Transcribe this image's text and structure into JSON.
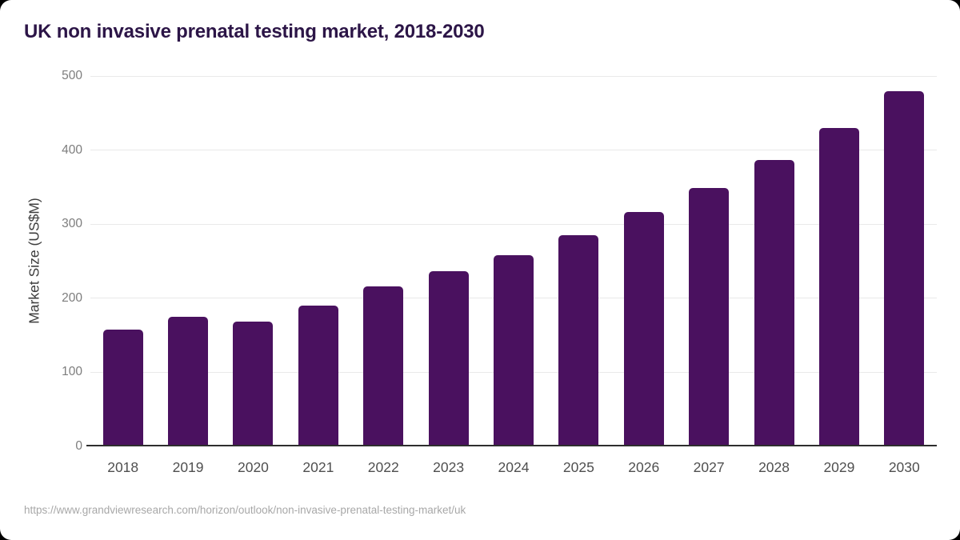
{
  "header": {
    "title": "UK non invasive prenatal testing market, 2018-2030",
    "title_color": "#2c1547"
  },
  "chart_data": {
    "type": "bar",
    "title": "UK non invasive prenatal testing market, 2018-2030",
    "categories": [
      "2018",
      "2019",
      "2020",
      "2021",
      "2022",
      "2023",
      "2024",
      "2025",
      "2026",
      "2027",
      "2028",
      "2029",
      "2030"
    ],
    "values": [
      158,
      175,
      169,
      190,
      216,
      236,
      258,
      285,
      316,
      349,
      387,
      430,
      480
    ],
    "xlabel": "",
    "ylabel": "Market Size (US$M)",
    "ylim": [
      0,
      500
    ],
    "yticks": [
      0,
      100,
      200,
      300,
      400,
      500
    ],
    "grid": true,
    "legend": "none",
    "bar_color": "#4a115f",
    "gridline_color": "#e9e9e9",
    "axis_line_color": "#2e2e2e",
    "y_tick_label_color": "#7d7d7d",
    "x_tick_label_color": "#4f4f4f"
  },
  "footer": {
    "source_url": "https://www.grandviewresearch.com/horizon/outlook/non-invasive-prenatal-testing-market/uk",
    "color": "#a8a8a8"
  }
}
